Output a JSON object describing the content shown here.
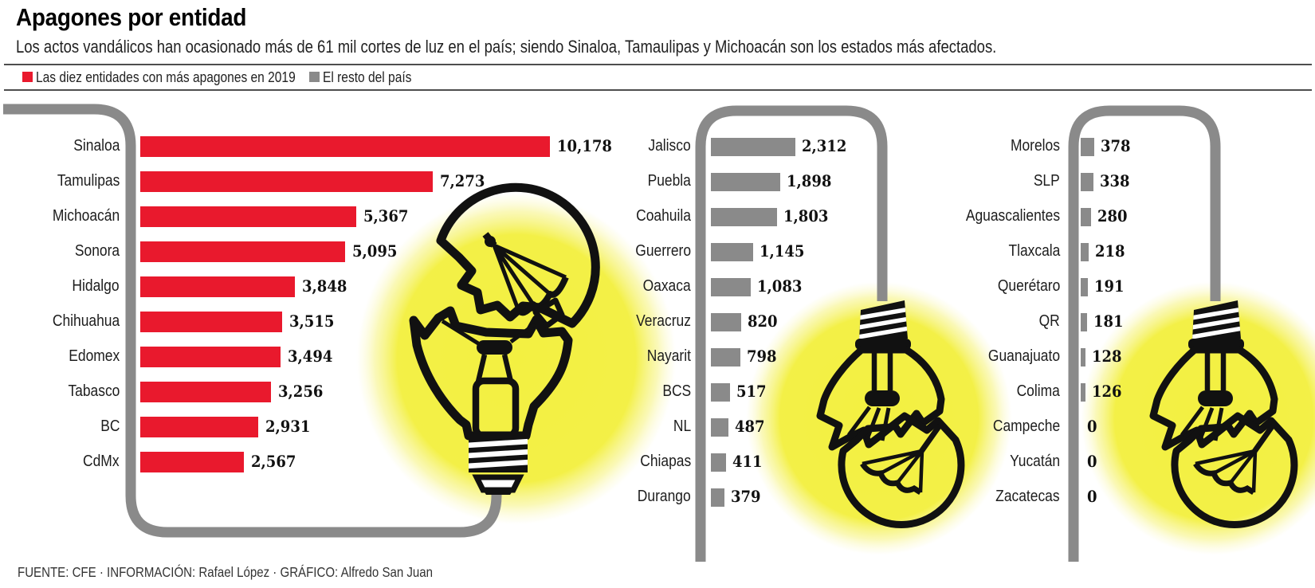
{
  "title": "Apagones por entidad",
  "subtitle": "Los actos vandálicos han ocasionado más de 61 mil cortes de luz en el país; siendo Sinaloa, Tamaulipas y Michoacán son los estados más afectados.",
  "legend": {
    "top10": {
      "label": "Las diez entidades con más apagones en 2019",
      "color": "#e9192d"
    },
    "rest": {
      "label": "El resto del país",
      "color": "#8a8a8a"
    }
  },
  "footer": "FUENTE: CFE · INFORMACIÓN: Rafael López · GRÁFICO: Alfredo San Juan",
  "icons": {
    "bulb": "broken-lightbulb-icon",
    "cord": "power-cord"
  },
  "colors": {
    "red": "#e9192d",
    "gray": "#8a8a8a",
    "glow": "#f3f043"
  },
  "chart_data": {
    "type": "bar",
    "orientation": "horizontal",
    "series": [
      {
        "name": "Las diez entidades con más apagones en 2019",
        "color": "#e9192d",
        "data": [
          {
            "label": "Sinaloa",
            "value": 10178,
            "display": "10,178"
          },
          {
            "label": "Tamulipas",
            "value": 7273,
            "display": "7,273"
          },
          {
            "label": "Michoacán",
            "value": 5367,
            "display": "5,367"
          },
          {
            "label": "Sonora",
            "value": 5095,
            "display": "5,095"
          },
          {
            "label": "Hidalgo",
            "value": 3848,
            "display": "3,848"
          },
          {
            "label": "Chihuahua",
            "value": 3515,
            "display": "3,515"
          },
          {
            "label": "Edomex",
            "value": 3494,
            "display": "3,494"
          },
          {
            "label": "Tabasco",
            "value": 3256,
            "display": "3,256"
          },
          {
            "label": "BC",
            "value": 2931,
            "display": "2,931"
          },
          {
            "label": "CdMx",
            "value": 2567,
            "display": "2,567"
          }
        ]
      },
      {
        "name": "El resto del país",
        "color": "#8a8a8a",
        "data": [
          {
            "label": "Jalisco",
            "value": 2312,
            "display": "2,312"
          },
          {
            "label": "Puebla",
            "value": 1898,
            "display": "1,898"
          },
          {
            "label": "Coahuila",
            "value": 1803,
            "display": "1,803"
          },
          {
            "label": "Guerrero",
            "value": 1145,
            "display": "1,145"
          },
          {
            "label": "Oaxaca",
            "value": 1083,
            "display": "1,083"
          },
          {
            "label": "Veracruz",
            "value": 820,
            "display": "820"
          },
          {
            "label": "Nayarit",
            "value": 798,
            "display": "798"
          },
          {
            "label": "BCS",
            "value": 517,
            "display": "517"
          },
          {
            "label": "NL",
            "value": 487,
            "display": "487"
          },
          {
            "label": "Chiapas",
            "value": 411,
            "display": "411"
          },
          {
            "label": "Durango",
            "value": 379,
            "display": "379"
          }
        ]
      },
      {
        "name": "El resto del país",
        "color": "#8a8a8a",
        "data": [
          {
            "label": "Morelos",
            "value": 378,
            "display": "378"
          },
          {
            "label": "SLP",
            "value": 338,
            "display": "338"
          },
          {
            "label": "Aguascalientes",
            "value": 280,
            "display": "280"
          },
          {
            "label": "Tlaxcala",
            "value": 218,
            "display": "218"
          },
          {
            "label": "Querétaro",
            "value": 191,
            "display": "191"
          },
          {
            "label": "QR",
            "value": 181,
            "display": "181"
          },
          {
            "label": "Guanajuato",
            "value": 128,
            "display": "128"
          },
          {
            "label": "Colima",
            "value": 126,
            "display": "126"
          },
          {
            "label": "Campeche",
            "value": 0,
            "display": "0"
          },
          {
            "label": "Yucatán",
            "value": 0,
            "display": "0"
          },
          {
            "label": "Zacatecas",
            "value": 0,
            "display": "0"
          }
        ]
      }
    ]
  }
}
